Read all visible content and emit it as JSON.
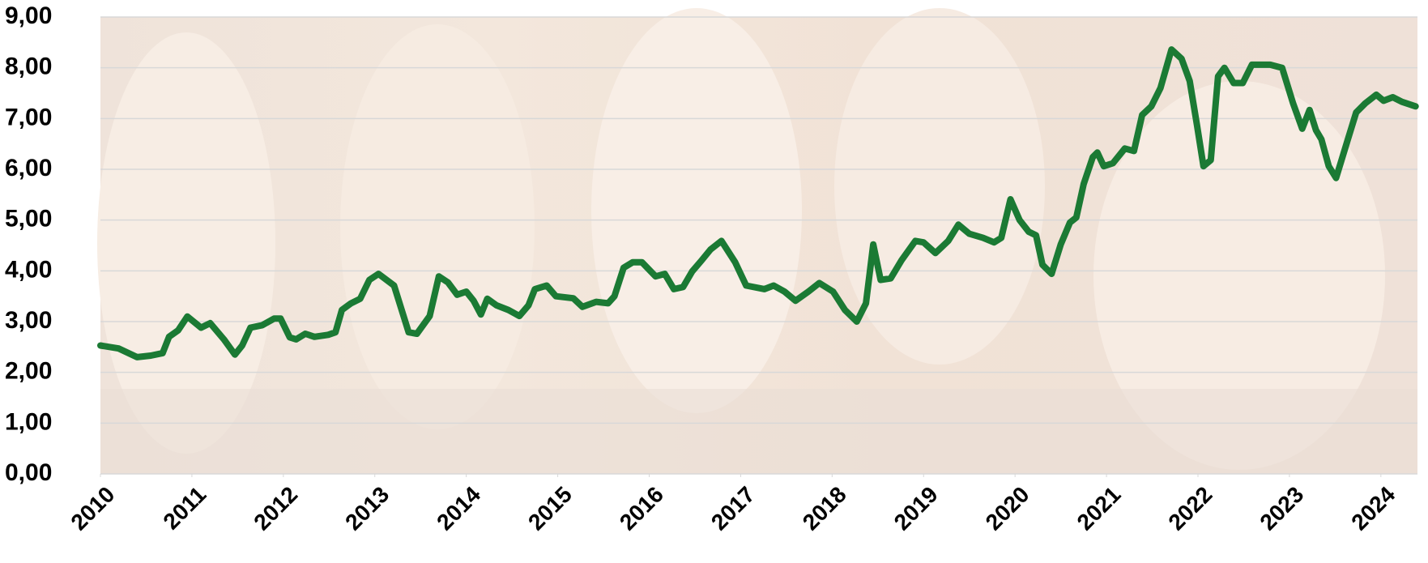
{
  "chart_data": {
    "type": "line",
    "color": "#1b7a34",
    "grid": true,
    "xlim": [
      2010,
      2024.4
    ],
    "xticks": [
      2010,
      2011,
      2012,
      2013,
      2014,
      2015,
      2016,
      2017,
      2018,
      2019,
      2020,
      2021,
      2022,
      2023,
      2024
    ],
    "ylim": [
      0,
      9
    ],
    "yticks": [
      {
        "value": 0,
        "label": "0,00"
      },
      {
        "value": 1,
        "label": "1,00"
      },
      {
        "value": 2,
        "label": "2,00"
      },
      {
        "value": 3,
        "label": "3,00"
      },
      {
        "value": 4,
        "label": "4,00"
      },
      {
        "value": 5,
        "label": "5,00"
      },
      {
        "value": 6,
        "label": "6,00"
      },
      {
        "value": 7,
        "label": "7,00"
      },
      {
        "value": 8,
        "label": "8,00"
      },
      {
        "value": 9,
        "label": "9,00"
      }
    ],
    "x": [
      2010.0,
      2010.2,
      2010.4,
      2010.55,
      2010.68,
      2010.75,
      2010.85,
      2010.95,
      2011.1,
      2011.2,
      2011.35,
      2011.47,
      2011.55,
      2011.64,
      2011.77,
      2011.9,
      2011.97,
      2012.07,
      2012.14,
      2012.24,
      2012.34,
      2012.49,
      2012.57,
      2012.64,
      2012.74,
      2012.84,
      2012.94,
      2013.04,
      2013.21,
      2013.37,
      2013.46,
      2013.6,
      2013.7,
      2013.8,
      2013.9,
      2014.0,
      2014.08,
      2014.16,
      2014.23,
      2014.33,
      2014.46,
      2014.58,
      2014.68,
      2014.75,
      2014.88,
      2014.98,
      2015.17,
      2015.27,
      2015.42,
      2015.55,
      2015.62,
      2015.72,
      2015.82,
      2015.92,
      2016.07,
      2016.17,
      2016.27,
      2016.37,
      2016.47,
      2016.57,
      2016.67,
      2016.79,
      2016.94,
      2017.06,
      2017.26,
      2017.36,
      2017.48,
      2017.6,
      2017.74,
      2017.86,
      2018.01,
      2018.14,
      2018.27,
      2018.37,
      2018.45,
      2018.53,
      2018.64,
      2018.76,
      2018.91,
      2019.0,
      2019.13,
      2019.27,
      2019.38,
      2019.5,
      2019.65,
      2019.77,
      2019.85,
      2019.95,
      2020.05,
      2020.15,
      2020.23,
      2020.3,
      2020.4,
      2020.5,
      2020.6,
      2020.67,
      2020.75,
      2020.85,
      2020.9,
      2020.97,
      2021.07,
      2021.2,
      2021.3,
      2021.39,
      2021.49,
      2021.59,
      2021.71,
      2021.82,
      2021.91,
      2021.99,
      2022.06,
      2022.14,
      2022.22,
      2022.29,
      2022.39,
      2022.49,
      2022.59,
      2022.79,
      2022.92,
      2023.04,
      2023.14,
      2023.22,
      2023.29,
      2023.35,
      2023.43,
      2023.51,
      2023.63,
      2023.73,
      2023.83,
      2023.95,
      2024.03,
      2024.13,
      2024.23,
      2024.38
    ],
    "values": [
      2.53,
      2.47,
      2.3,
      2.33,
      2.38,
      2.7,
      2.83,
      3.1,
      2.88,
      2.97,
      2.65,
      2.35,
      2.53,
      2.88,
      2.93,
      3.06,
      3.06,
      2.69,
      2.65,
      2.76,
      2.7,
      2.74,
      2.79,
      3.23,
      3.36,
      3.45,
      3.82,
      3.94,
      3.71,
      2.79,
      2.76,
      3.11,
      3.89,
      3.77,
      3.53,
      3.59,
      3.41,
      3.14,
      3.45,
      3.32,
      3.23,
      3.11,
      3.32,
      3.64,
      3.71,
      3.5,
      3.46,
      3.29,
      3.39,
      3.36,
      3.5,
      4.06,
      4.17,
      4.17,
      3.89,
      3.94,
      3.64,
      3.68,
      3.99,
      4.2,
      4.42,
      4.59,
      4.17,
      3.71,
      3.64,
      3.71,
      3.59,
      3.41,
      3.59,
      3.76,
      3.59,
      3.23,
      3.0,
      3.36,
      4.52,
      3.82,
      3.85,
      4.21,
      4.59,
      4.56,
      4.35,
      4.59,
      4.91,
      4.73,
      4.65,
      4.56,
      4.65,
      5.41,
      5.0,
      4.77,
      4.7,
      4.12,
      3.94,
      4.52,
      4.95,
      5.05,
      5.71,
      6.24,
      6.33,
      6.06,
      6.12,
      6.41,
      6.36,
      7.07,
      7.24,
      7.6,
      8.36,
      8.18,
      7.74,
      6.86,
      6.06,
      6.18,
      7.83,
      8.0,
      7.7,
      7.7,
      8.06,
      8.06,
      8.0,
      7.3,
      6.8,
      7.17,
      6.77,
      6.59,
      6.06,
      5.83,
      6.54,
      7.12,
      7.3,
      7.47,
      7.35,
      7.42,
      7.33,
      7.24
    ]
  }
}
